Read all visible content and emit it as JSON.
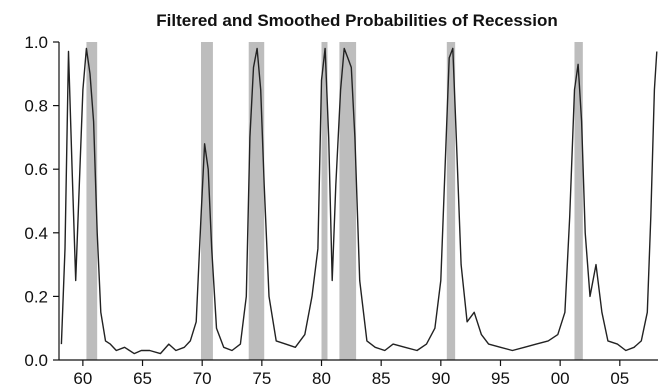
{
  "chart_data": {
    "type": "line",
    "title": "Filtered and Smoothed Probabilities of Recession",
    "xlabel": "",
    "ylabel": "",
    "xlim": [
      1958.0,
      2008.2
    ],
    "ylim": [
      0.0,
      1.0
    ],
    "x_ticks": [
      1960,
      1965,
      1970,
      1975,
      1980,
      1985,
      1990,
      1995,
      2000,
      2005
    ],
    "x_tick_labels": [
      "60",
      "65",
      "70",
      "75",
      "80",
      "85",
      "90",
      "95",
      "00",
      "05"
    ],
    "y_ticks": [
      0.0,
      0.2,
      0.4,
      0.6,
      0.8,
      1.0
    ],
    "y_tick_labels": [
      "0.0",
      "0.2",
      "0.4",
      "0.6",
      "0.8",
      "1.0"
    ],
    "grid": false,
    "recession_shading": [
      [
        1960.3,
        1961.2
      ],
      [
        1969.9,
        1970.9
      ],
      [
        1973.9,
        1975.2
      ],
      [
        1980.0,
        1980.5
      ],
      [
        1981.5,
        1982.9
      ],
      [
        1990.5,
        1991.2
      ],
      [
        2001.2,
        2001.9
      ]
    ],
    "shading_color": "#bdbdbd",
    "line_color": "#222222",
    "series": [
      {
        "x": [
          1958.2,
          1958.5,
          1958.8,
          1959.1,
          1959.4,
          1959.7,
          1960.0,
          1960.3,
          1960.6,
          1960.9,
          1961.2,
          1961.5,
          1961.9,
          1962.3,
          1962.8,
          1963.5,
          1964.3,
          1964.9,
          1965.6,
          1966.5,
          1967.2,
          1967.8,
          1968.5,
          1969.0,
          1969.5,
          1969.9,
          1970.2,
          1970.5,
          1970.8,
          1971.2,
          1971.8,
          1972.5,
          1973.2,
          1973.7,
          1974.0,
          1974.3,
          1974.6,
          1974.9,
          1975.2,
          1975.6,
          1976.2,
          1977.0,
          1977.8,
          1978.6,
          1979.2,
          1979.7,
          1980.0,
          1980.3,
          1980.6,
          1980.9,
          1981.2,
          1981.6,
          1981.9,
          1982.2,
          1982.5,
          1982.8,
          1983.2,
          1983.8,
          1984.5,
          1985.3,
          1986.0,
          1987.0,
          1988.0,
          1988.8,
          1989.5,
          1990.0,
          1990.4,
          1990.7,
          1991.0,
          1991.3,
          1991.7,
          1992.2,
          1992.8,
          1993.4,
          1994.0,
          1995.0,
          1996.0,
          1997.0,
          1998.0,
          1999.0,
          1999.8,
          2000.4,
          2000.8,
          2001.2,
          2001.5,
          2001.8,
          2002.1,
          2002.5,
          2003.0,
          2003.5,
          2004.0,
          2004.8,
          2005.5,
          2006.2,
          2006.8,
          2007.3,
          2007.6,
          2007.9,
          2008.1
        ],
        "values": [
          0.05,
          0.35,
          0.97,
          0.6,
          0.25,
          0.55,
          0.85,
          0.98,
          0.9,
          0.75,
          0.4,
          0.15,
          0.06,
          0.05,
          0.03,
          0.04,
          0.02,
          0.03,
          0.03,
          0.02,
          0.05,
          0.03,
          0.04,
          0.06,
          0.12,
          0.45,
          0.68,
          0.6,
          0.35,
          0.1,
          0.04,
          0.03,
          0.05,
          0.2,
          0.7,
          0.92,
          0.98,
          0.85,
          0.55,
          0.2,
          0.06,
          0.05,
          0.04,
          0.08,
          0.2,
          0.35,
          0.88,
          0.98,
          0.7,
          0.25,
          0.55,
          0.85,
          0.98,
          0.95,
          0.92,
          0.7,
          0.25,
          0.06,
          0.04,
          0.03,
          0.05,
          0.04,
          0.03,
          0.05,
          0.1,
          0.25,
          0.65,
          0.95,
          0.98,
          0.7,
          0.3,
          0.12,
          0.15,
          0.08,
          0.05,
          0.04,
          0.03,
          0.04,
          0.05,
          0.06,
          0.08,
          0.15,
          0.45,
          0.85,
          0.93,
          0.75,
          0.4,
          0.2,
          0.3,
          0.15,
          0.06,
          0.05,
          0.03,
          0.04,
          0.06,
          0.15,
          0.45,
          0.85,
          0.97
        ]
      }
    ]
  }
}
